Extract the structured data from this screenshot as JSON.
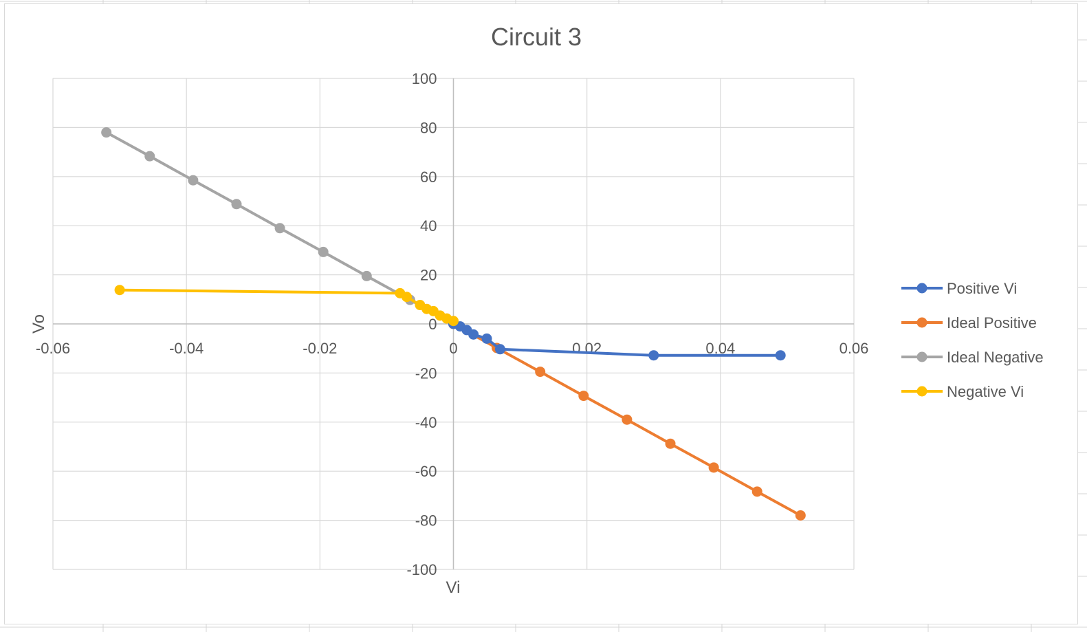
{
  "chart_data": {
    "type": "scatter",
    "title": "Circuit 3",
    "xlabel": "Vi",
    "ylabel": "Vo",
    "xlim": [
      -0.06,
      0.06
    ],
    "ylim": [
      -100,
      100
    ],
    "x_ticks": [
      "-0.06",
      "-0.04",
      "-0.02",
      "0",
      "0.02",
      "0.04",
      "0.06"
    ],
    "y_ticks": [
      "-100",
      "-80",
      "-60",
      "-40",
      "-20",
      "0",
      "20",
      "40",
      "60",
      "80",
      "100"
    ],
    "grid": true,
    "legend_position": "right",
    "series": [
      {
        "name": "Positive Vi",
        "color": "#4472C4",
        "x": [
          0,
          0.001,
          0.002,
          0.003,
          0.005,
          0.007,
          0.03,
          0.049
        ],
        "y": [
          0,
          -1,
          -2.5,
          -4.3,
          -6,
          -10.3,
          -12.8,
          -12.8
        ]
      },
      {
        "name": "Ideal Positive",
        "color": "#ED7D31",
        "x": [
          0,
          0.0065,
          0.013,
          0.0195,
          0.026,
          0.0325,
          0.039,
          0.0455,
          0.052
        ],
        "y": [
          0,
          -9.8,
          -19.5,
          -29.3,
          -39,
          -48.8,
          -58.5,
          -68.3,
          -78
        ]
      },
      {
        "name": "Ideal Negative",
        "color": "#A5A5A5",
        "x": [
          0,
          -0.0065,
          -0.013,
          -0.0195,
          -0.026,
          -0.0325,
          -0.039,
          -0.0455,
          -0.052
        ],
        "y": [
          0,
          9.8,
          19.5,
          29.3,
          39,
          48.8,
          58.5,
          68.3,
          78
        ]
      },
      {
        "name": "Negative Vi",
        "color": "#FFC000",
        "x": [
          -0.05,
          -0.008,
          -0.007,
          -0.005,
          -0.004,
          -0.003,
          -0.002,
          -0.001,
          0
        ],
        "y": [
          13.8,
          12.5,
          11,
          7.7,
          6.1,
          5.2,
          3.4,
          2.2,
          1.2
        ]
      }
    ]
  }
}
